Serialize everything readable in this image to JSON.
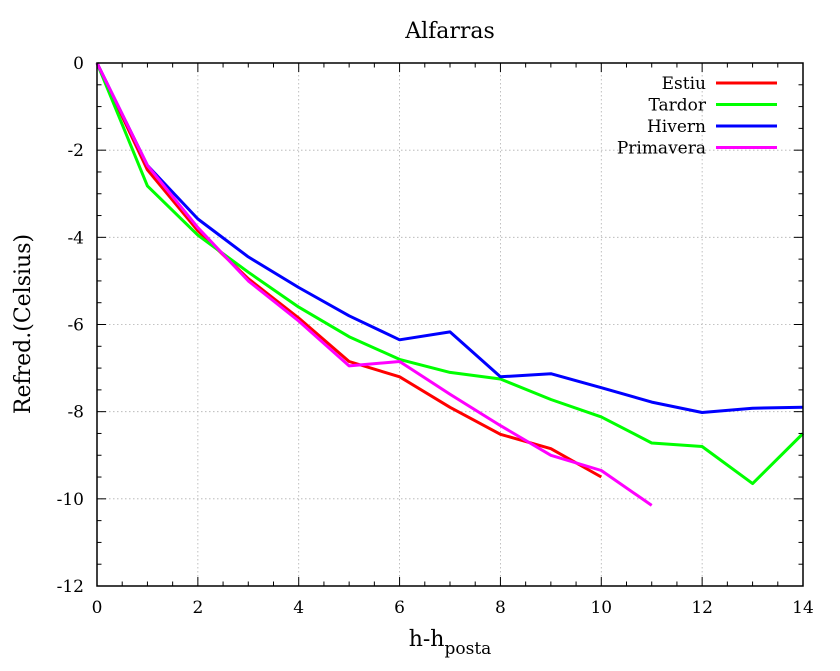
{
  "chart_data": {
    "type": "line",
    "title": "Alfarras",
    "xlabel": {
      "main": "h-h",
      "sub": "posta"
    },
    "ylabel": "Refred.(Celsius)",
    "xlim": [
      0,
      14
    ],
    "ylim": [
      -12,
      0
    ],
    "x_ticks": [
      0,
      2,
      4,
      6,
      8,
      10,
      12,
      14
    ],
    "y_ticks": [
      0,
      -2,
      -4,
      -6,
      -8,
      -10,
      -12
    ],
    "grid": true,
    "legend_position": "top-right",
    "series": [
      {
        "name": "Estiu",
        "color": "#ff0000",
        "x": [
          0,
          1,
          2,
          3,
          4,
          5,
          6,
          7,
          8,
          9,
          10
        ],
        "y": [
          0,
          -2.45,
          -3.85,
          -4.95,
          -5.85,
          -6.85,
          -7.2,
          -7.9,
          -8.52,
          -8.85,
          -9.5
        ]
      },
      {
        "name": "Tardor",
        "color": "#00ff00",
        "x": [
          0,
          1,
          2,
          3,
          4,
          5,
          6,
          7,
          8,
          9,
          10,
          11,
          12,
          13,
          14
        ],
        "y": [
          0,
          -2.82,
          -3.95,
          -4.8,
          -5.6,
          -6.28,
          -6.8,
          -7.1,
          -7.25,
          -7.72,
          -8.12,
          -8.72,
          -8.8,
          -9.65,
          -8.5
        ]
      },
      {
        "name": "Hivern",
        "color": "#0000ff",
        "x": [
          0,
          1,
          2,
          3,
          4,
          5,
          6,
          7,
          8,
          9,
          10,
          11,
          12,
          13,
          14
        ],
        "y": [
          0,
          -2.35,
          -3.58,
          -4.45,
          -5.15,
          -5.8,
          -6.35,
          -6.17,
          -7.2,
          -7.13,
          -7.45,
          -7.78,
          -8.02,
          -7.92,
          -7.9
        ]
      },
      {
        "name": "Primavera",
        "color": "#ff00ff",
        "x": [
          0,
          1,
          2,
          3,
          4,
          5,
          6,
          7,
          8,
          9,
          10,
          11
        ],
        "y": [
          0,
          -2.35,
          -3.78,
          -5.0,
          -5.92,
          -6.95,
          -6.85,
          -7.6,
          -8.32,
          -9.0,
          -9.35,
          -10.15
        ]
      }
    ]
  }
}
